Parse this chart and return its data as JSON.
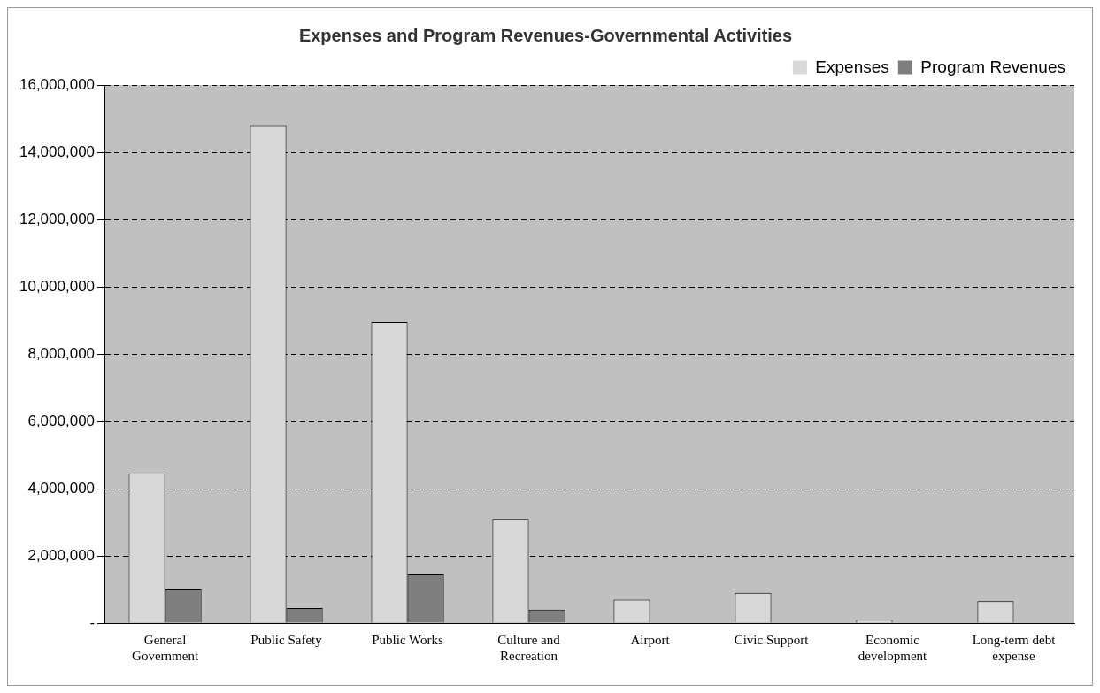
{
  "chart_data": {
    "type": "bar",
    "title": "Expenses and Program Revenues-Governmental Activities",
    "categories": [
      "General Government",
      "Public Safety",
      "Public Works",
      "Culture and Recreation",
      "Airport",
      "Civic Support",
      "Economic development",
      "Long-term debt expense"
    ],
    "series": [
      {
        "name": "Expenses",
        "color": "#d8d8d8",
        "values": [
          4450000,
          14800000,
          8950000,
          3100000,
          700000,
          900000,
          100000,
          650000
        ]
      },
      {
        "name": "Program Revenues",
        "color": "#7f7f7f",
        "values": [
          1000000,
          450000,
          1450000,
          400000,
          null,
          0,
          null,
          0
        ]
      }
    ],
    "ylim": [
      0,
      16000000
    ],
    "yticks": [
      {
        "value": 0,
        "label": "-"
      },
      {
        "value": 2000000,
        "label": "2,000,000"
      },
      {
        "value": 4000000,
        "label": "4,000,000"
      },
      {
        "value": 6000000,
        "label": "6,000,000"
      },
      {
        "value": 8000000,
        "label": "8,000,000"
      },
      {
        "value": 10000000,
        "label": "10,000,000"
      },
      {
        "value": 12000000,
        "label": "12,000,000"
      },
      {
        "value": 14000000,
        "label": "14,000,000"
      },
      {
        "value": 16000000,
        "label": "16,000,000"
      }
    ],
    "grid": "y",
    "legend": "top right"
  }
}
